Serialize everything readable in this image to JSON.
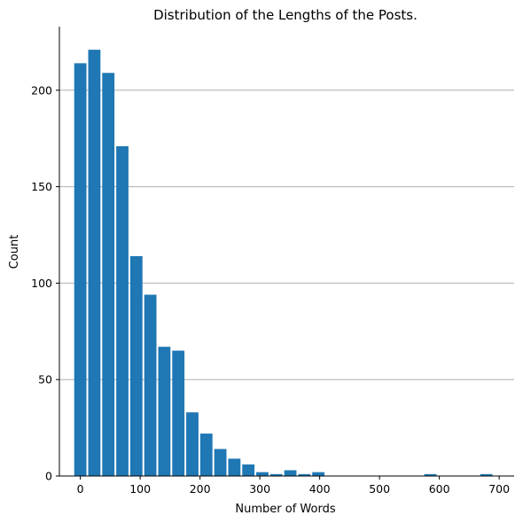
{
  "chart_data": {
    "type": "bar",
    "title": "Distribution of the Lengths of the Posts.",
    "xlabel": "Number of Words",
    "ylabel": "Count",
    "xlim": [
      -35,
      725
    ],
    "ylim": [
      0,
      233
    ],
    "bin_width": 23.4,
    "x_ticks": [
      0,
      100,
      200,
      300,
      400,
      500,
      600,
      700
    ],
    "y_ticks": [
      0,
      50,
      100,
      150,
      200
    ],
    "grid": "horizontal",
    "bar_color": "#1f77b4",
    "bins": [
      {
        "x": 0,
        "count": 214
      },
      {
        "x": 23.4,
        "count": 221
      },
      {
        "x": 46.8,
        "count": 209
      },
      {
        "x": 70.2,
        "count": 171
      },
      {
        "x": 93.6,
        "count": 114
      },
      {
        "x": 117,
        "count": 94
      },
      {
        "x": 140.4,
        "count": 67
      },
      {
        "x": 163.8,
        "count": 65
      },
      {
        "x": 187.2,
        "count": 33
      },
      {
        "x": 210.6,
        "count": 22
      },
      {
        "x": 234,
        "count": 14
      },
      {
        "x": 257.4,
        "count": 9
      },
      {
        "x": 280.8,
        "count": 6
      },
      {
        "x": 304.2,
        "count": 2
      },
      {
        "x": 327.6,
        "count": 1
      },
      {
        "x": 351,
        "count": 3
      },
      {
        "x": 374.4,
        "count": 1
      },
      {
        "x": 397.8,
        "count": 2
      },
      {
        "x": 585,
        "count": 1
      },
      {
        "x": 678.6,
        "count": 1
      }
    ]
  }
}
